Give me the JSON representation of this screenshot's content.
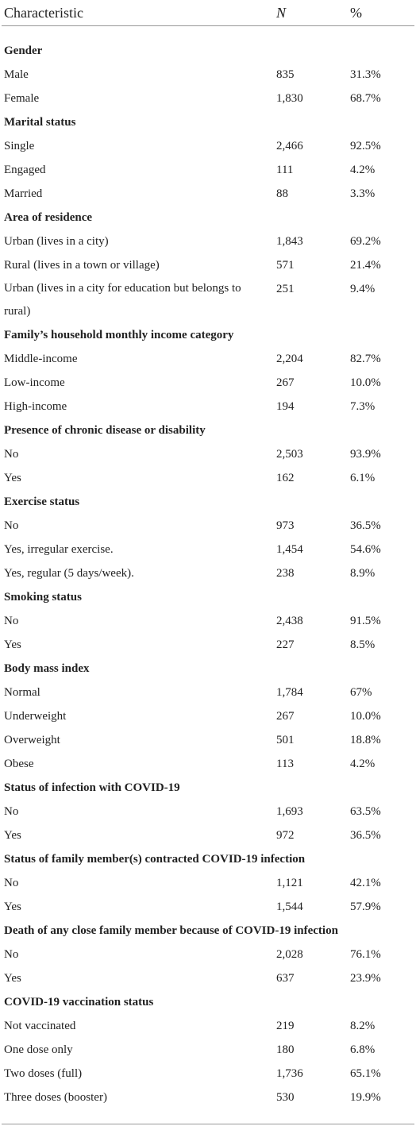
{
  "table": {
    "columns": [
      "Characteristic",
      "N",
      "%"
    ],
    "groups": [
      {
        "label": "Gender",
        "rows": [
          [
            "Male",
            "835",
            "31.3%"
          ],
          [
            "Female",
            "1,830",
            "68.7%"
          ]
        ]
      },
      {
        "label": "Marital status",
        "rows": [
          [
            "Single",
            "2,466",
            "92.5%"
          ],
          [
            "Engaged",
            "111",
            "4.2%"
          ],
          [
            "Married",
            "88",
            "3.3%"
          ]
        ]
      },
      {
        "label": "Area of residence",
        "rows": [
          [
            "Urban (lives in a city)",
            "1,843",
            "69.2%"
          ],
          [
            "Rural (lives in a town or village)",
            "571",
            "21.4%"
          ],
          [
            "Urban (lives in a city for education but belongs to rural)",
            "251",
            "9.4%"
          ]
        ]
      },
      {
        "label": "Family’s household monthly income category",
        "rows": [
          [
            "Middle-income",
            "2,204",
            "82.7%"
          ],
          [
            "Low-income",
            "267",
            "10.0%"
          ],
          [
            "High-income",
            "194",
            "7.3%"
          ]
        ]
      },
      {
        "label": "Presence of chronic disease or disability",
        "rows": [
          [
            "No",
            "2,503",
            "93.9%"
          ],
          [
            "Yes",
            "162",
            "6.1%"
          ]
        ]
      },
      {
        "label": "Exercise status",
        "rows": [
          [
            "No",
            "973",
            "36.5%"
          ],
          [
            "Yes, irregular exercise.",
            "1,454",
            "54.6%"
          ],
          [
            "Yes, regular (5 days/week).",
            "238",
            "8.9%"
          ]
        ]
      },
      {
        "label": "Smoking status",
        "rows": [
          [
            "No",
            "2,438",
            "91.5%"
          ],
          [
            "Yes",
            "227",
            "8.5%"
          ]
        ]
      },
      {
        "label": "Body mass index",
        "rows": [
          [
            "Normal",
            "1,784",
            "67%"
          ],
          [
            "Underweight",
            "267",
            "10.0%"
          ],
          [
            "Overweight",
            "501",
            "18.8%"
          ],
          [
            "Obese",
            "113",
            "4.2%"
          ]
        ]
      },
      {
        "label": "Status of infection with COVID-19",
        "rows": [
          [
            "No",
            "1,693",
            "63.5%"
          ],
          [
            "Yes",
            "972",
            "36.5%"
          ]
        ]
      },
      {
        "label": "Status of family member(s) contracted COVID-19 infection",
        "rows": [
          [
            "No",
            "1,121",
            "42.1%"
          ],
          [
            "Yes",
            "1,544",
            "57.9%"
          ]
        ]
      },
      {
        "label": "Death of any close family member because of COVID-19 infection",
        "rows": [
          [
            "No",
            "2,028",
            "76.1%"
          ],
          [
            "Yes",
            "637",
            "23.9%"
          ]
        ]
      },
      {
        "label": "COVID-19 vaccination status",
        "rows": [
          [
            "Not vaccinated",
            "219",
            "8.2%"
          ],
          [
            "One dose only",
            "180",
            "6.8%"
          ],
          [
            "Two doses (full)",
            "1,736",
            "65.1%"
          ],
          [
            "Three doses (booster)",
            "530",
            "19.9%"
          ]
        ]
      }
    ]
  }
}
